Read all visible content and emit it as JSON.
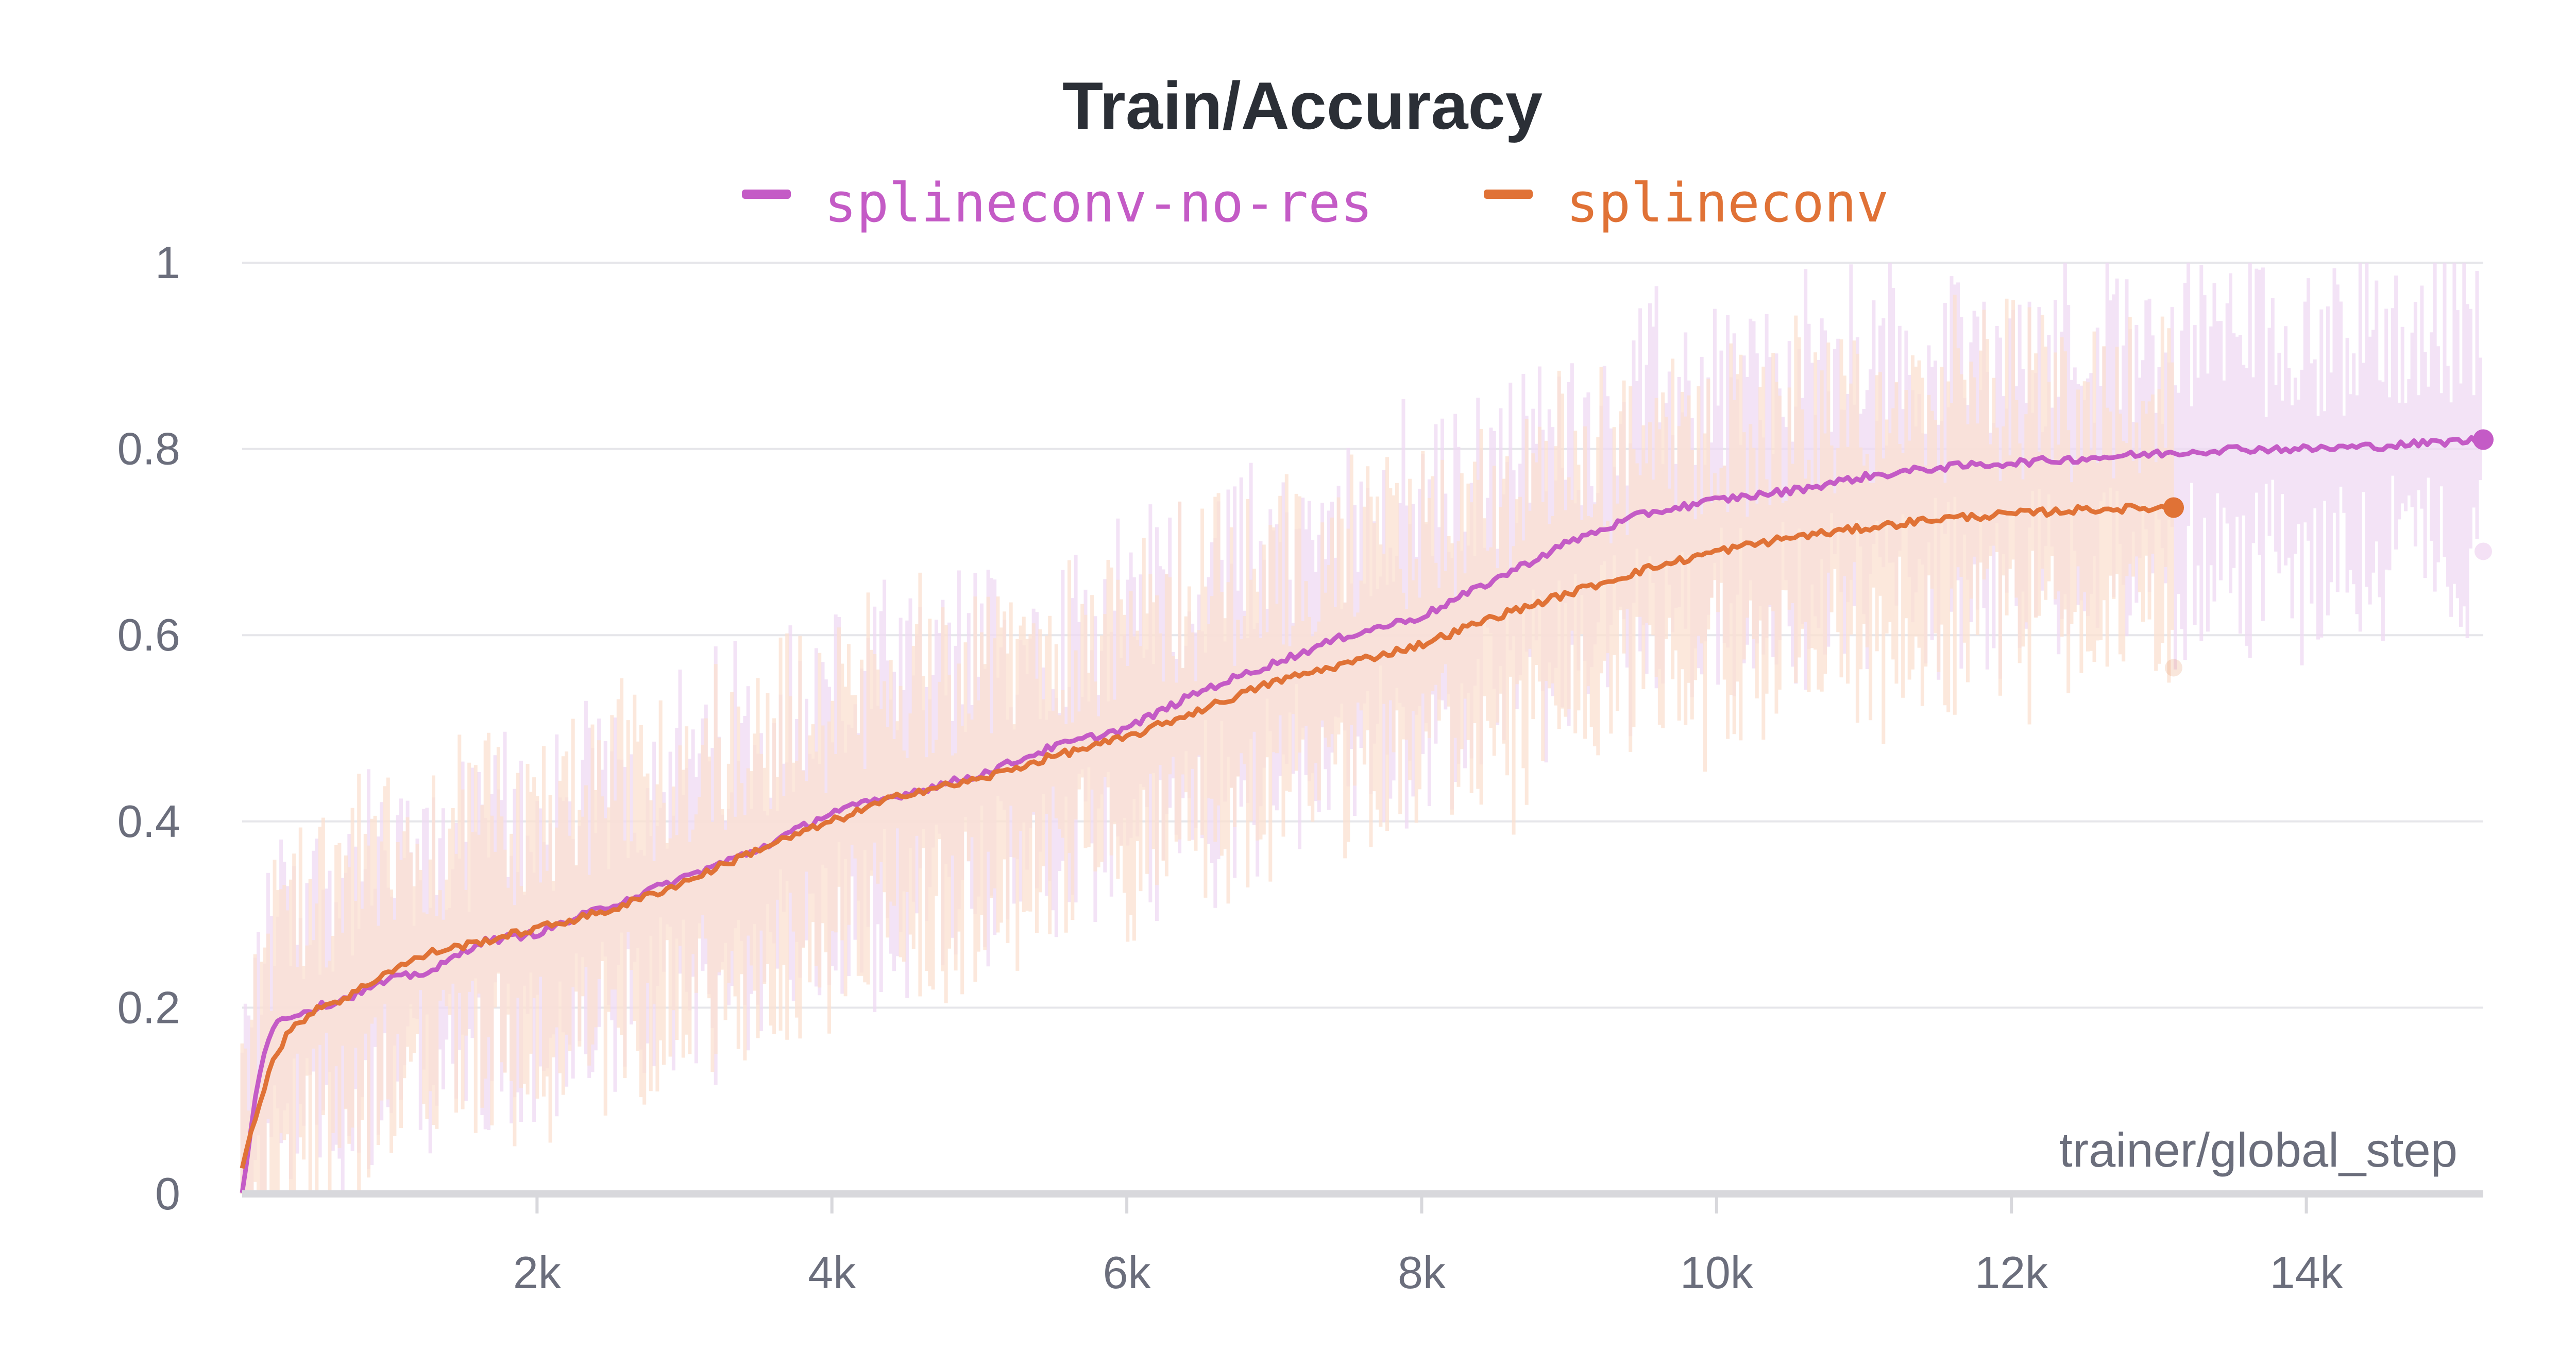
{
  "chart_data": {
    "type": "line",
    "title": "Train/Accuracy",
    "xlabel": "trainer/global_step",
    "ylabel": "",
    "xlim": [
      0,
      15200
    ],
    "ylim": [
      0,
      1
    ],
    "x_ticks": [
      2000,
      4000,
      6000,
      8000,
      10000,
      12000,
      14000
    ],
    "x_tick_labels": [
      "2k",
      "4k",
      "6k",
      "8k",
      "10k",
      "12k",
      "14k"
    ],
    "y_ticks": [
      0,
      0.2,
      0.4,
      0.6,
      0.8,
      1
    ],
    "y_tick_labels": [
      "0",
      "0.2",
      "0.4",
      "0.6",
      "0.8",
      "1"
    ],
    "grid": true,
    "legend_position": "top-center",
    "series": [
      {
        "name": "splineconv-no-res",
        "color": "#c45bc6",
        "last_raw_value": 0.69,
        "x": [
          0,
          100,
          200,
          300,
          500,
          700,
          1000,
          1300,
          1600,
          2000,
          2500,
          3000,
          3500,
          4000,
          4500,
          5000,
          5500,
          6000,
          6500,
          7000,
          7500,
          8000,
          8500,
          9000,
          9500,
          10000,
          10500,
          11000,
          11500,
          12000,
          12500,
          13000,
          13500,
          14000,
          14500,
          15200
        ],
        "values": [
          0.0,
          0.12,
          0.18,
          0.19,
          0.2,
          0.21,
          0.23,
          0.24,
          0.27,
          0.28,
          0.31,
          0.34,
          0.37,
          0.41,
          0.43,
          0.45,
          0.48,
          0.5,
          0.54,
          0.57,
          0.6,
          0.62,
          0.66,
          0.7,
          0.73,
          0.745,
          0.755,
          0.77,
          0.78,
          0.785,
          0.79,
          0.795,
          0.8,
          0.8,
          0.803,
          0.81
        ]
      },
      {
        "name": "splineconv",
        "color": "#e07236",
        "last_raw_value": 0.565,
        "x": [
          0,
          100,
          200,
          300,
          500,
          700,
          1000,
          1300,
          1600,
          2000,
          2500,
          3000,
          3500,
          4000,
          4500,
          5000,
          5500,
          6000,
          6500,
          7000,
          7500,
          8000,
          8500,
          9000,
          9500,
          10000,
          10500,
          11000,
          11500,
          12000,
          12500,
          13100
        ],
        "values": [
          0.03,
          0.09,
          0.14,
          0.17,
          0.2,
          0.21,
          0.24,
          0.26,
          0.27,
          0.285,
          0.305,
          0.335,
          0.37,
          0.4,
          0.43,
          0.445,
          0.47,
          0.49,
          0.52,
          0.55,
          0.57,
          0.59,
          0.62,
          0.645,
          0.67,
          0.69,
          0.705,
          0.715,
          0.725,
          0.73,
          0.735,
          0.737
        ]
      }
    ]
  }
}
